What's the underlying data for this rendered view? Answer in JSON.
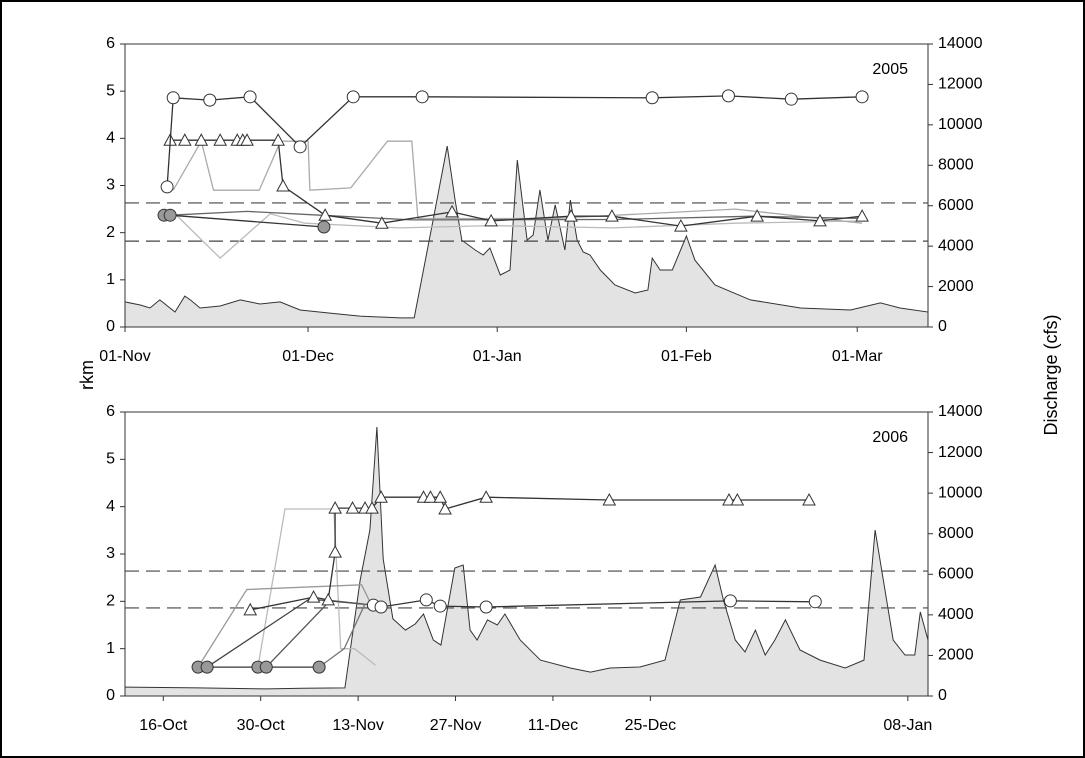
{
  "chart_data": [
    {
      "type": "line",
      "label": "2005",
      "y_label": "rkm",
      "y2_label": "Discharge (cfs)",
      "xlim": [
        0,
        131.6
      ],
      "xticks": [
        {
          "value": 0,
          "label": "01-Nov"
        },
        {
          "value": 30,
          "label": "01-Dec"
        },
        {
          "value": 61,
          "label": "01-Jan"
        },
        {
          "value": 92,
          "label": "01-Feb"
        },
        {
          "value": 120,
          "label": "01-Mar"
        }
      ],
      "ylim": [
        0,
        6
      ],
      "yticks": [
        0,
        1,
        2,
        3,
        4,
        5,
        6
      ],
      "y2lim": [
        0,
        14000
      ],
      "y2ticks": [
        0,
        2000,
        4000,
        6000,
        8000,
        10000,
        12000,
        14000
      ],
      "reference_lines": [
        2.63,
        1.82
      ],
      "series": [
        {
          "axis": "y2",
          "area": true,
          "color": "#333333",
          "fill": "#e3e3e3",
          "x": [
            0,
            2.5,
            4.1,
            5.7,
            8.2,
            9.8,
            10.7,
            12.3,
            15.6,
            18.9,
            22.1,
            25.4,
            28.7,
            33.6,
            38.5,
            45.1,
            47.4,
            50.5,
            52.8,
            54.1,
            55.2,
            57.4,
            58.7,
            59.8,
            61.5,
            63.1,
            64.3,
            65.9,
            66.9,
            68.0,
            69.3,
            70.5,
            72.1,
            73.0,
            74.1,
            75.1,
            76.2,
            77.9,
            80.3,
            83.6,
            85.7,
            86.4,
            87.7,
            89.7,
            92.0,
            93.4,
            96.7,
            102.5,
            110.7,
            118.9,
            123.8,
            127.0,
            131.6
          ],
          "values": [
            1240,
            1090,
            940,
            1340,
            740,
            1530,
            1340,
            940,
            1040,
            1340,
            1140,
            1240,
            840,
            690,
            540,
            450,
            450,
            5290,
            8950,
            6280,
            4300,
            3810,
            3560,
            3910,
            2570,
            2820,
            8260,
            4300,
            4550,
            6780,
            4300,
            6040,
            3810,
            6280,
            4300,
            3710,
            3560,
            2820,
            2080,
            1680,
            1830,
            3410,
            2820,
            2820,
            4500,
            3310,
            2080,
            1340,
            940,
            840,
            1190,
            940,
            740
          ]
        },
        {
          "color": "#bbbbbb",
          "x": [
            7.4,
            15.6,
            23.8,
            29.5,
            45,
            60,
            80,
            100,
            120.8
          ],
          "values": [
            2.5,
            1.46,
            2.4,
            2.2,
            2.1,
            2.15,
            2.1,
            2.2,
            2.25
          ]
        },
        {
          "color": "#aaaaaa",
          "x": [
            7.9,
            12.5,
            14.5,
            22,
            25.5,
            30,
            30.3,
            37,
            43,
            47,
            48,
            70,
            100,
            120.8
          ],
          "values": [
            2.9,
            3.94,
            2.9,
            2.9,
            3.94,
            3.94,
            2.9,
            2.95,
            3.94,
            3.94,
            2.3,
            2.3,
            2.5,
            2.2
          ]
        },
        {
          "color": "#666666",
          "x": [
            7.4,
            20,
            32,
            47,
            80,
            103,
            120.8
          ],
          "values": [
            2.37,
            2.45,
            2.37,
            2.27,
            2.28,
            2.35,
            2.3
          ]
        },
        {
          "color": "#333333",
          "marker": "triangle",
          "marker_fill": "#ffffff",
          "x": [
            7.4,
            9.8,
            12.5,
            15.6,
            18.4,
            19.3,
            20,
            25.1,
            25.9,
            32.8,
            42.1,
            53.6,
            60,
            73.1,
            79.8,
            91.1,
            103.6,
            113.9,
            120.8
          ],
          "values": [
            3.96,
            3.96,
            3.96,
            3.96,
            3.96,
            3.96,
            3.96,
            3.96,
            2.99,
            2.37,
            2.2,
            2.44,
            2.25,
            2.35,
            2.35,
            2.14,
            2.35,
            2.25,
            2.35
          ]
        },
        {
          "color": "#333333",
          "marker": "circle",
          "marker_fill": "#ffffff",
          "x": [
            6.9,
            7.9,
            13.9,
            20.5,
            28.7,
            37.4,
            48.7,
            86.4,
            98.9,
            109.2,
            120.8
          ],
          "values": [
            2.97,
            4.86,
            4.81,
            4.88,
            3.82,
            4.88,
            4.88,
            4.86,
            4.9,
            4.83,
            4.88
          ]
        },
        {
          "color": "#333333",
          "marker": "circle",
          "marker_fill": "#999999",
          "x": [
            6.4,
            7.4,
            32.6
          ],
          "values": [
            2.37,
            2.37,
            2.12
          ]
        }
      ]
    },
    {
      "type": "line",
      "label": "2006",
      "xlim": [
        -5.5,
        109.9
      ],
      "xticks": [
        {
          "value": 0,
          "label": "16-Oct"
        },
        {
          "value": 14,
          "label": "30-Oct"
        },
        {
          "value": 28,
          "label": "13-Nov"
        },
        {
          "value": 42,
          "label": "27-Nov"
        },
        {
          "value": 56,
          "label": "11-Dec"
        },
        {
          "value": 70,
          "label": "25-Dec"
        },
        {
          "value": 107,
          "label": "08-Jan"
        }
      ],
      "ylim": [
        0,
        6
      ],
      "yticks": [
        0,
        1,
        2,
        3,
        4,
        5,
        6
      ],
      "y2lim": [
        0,
        14000
      ],
      "y2ticks": [
        0,
        2000,
        4000,
        6000,
        8000,
        10000,
        12000,
        14000
      ],
      "reference_lines": [
        2.64,
        1.86
      ],
      "series": [
        {
          "axis": "y2",
          "area": true,
          "color": "#333333",
          "fill": "#e3e3e3",
          "x": [
            -5.5,
            5,
            15,
            20,
            26.1,
            28.3,
            29.7,
            30.7,
            31.6,
            33.0,
            34.8,
            36.2,
            37.4,
            38.8,
            39.9,
            41.9,
            43.1,
            44.1,
            45.1,
            46.6,
            48.0,
            49.1,
            51.3,
            54.2,
            58.5,
            61.4,
            64.2,
            68.5,
            72.1,
            74.3,
            77.2,
            79.3,
            80.5,
            82.2,
            83.6,
            85.1,
            86.5,
            87.9,
            89.4,
            91.5,
            94.4,
            98.0,
            100.7,
            102.3,
            104.9,
            106.6,
            108.0,
            108.8,
            109.9
          ],
          "values": [
            440,
            400,
            350,
            380,
            400,
            5720,
            8190,
            13260,
            6750,
            3800,
            3250,
            3550,
            4040,
            2760,
            2510,
            6310,
            6460,
            3250,
            2760,
            3750,
            3500,
            4040,
            2760,
            1770,
            1380,
            1180,
            1380,
            1430,
            1770,
            4730,
            4880,
            6460,
            4730,
            2760,
            2170,
            3250,
            2020,
            2760,
            3750,
            2270,
            1770,
            1380,
            1770,
            8180,
            2760,
            2020,
            2020,
            4140,
            2760
          ]
        },
        {
          "color": "#bbbbbb",
          "x": [
            13.6,
            17.5,
            24.5,
            25.5,
            27.5,
            30.5
          ],
          "values": [
            0.61,
            3.95,
            3.95,
            1.0,
            1.0,
            0.65
          ]
        },
        {
          "color": "#999999",
          "x": [
            5.0,
            12,
            28.5,
            30
          ],
          "values": [
            0.61,
            2.25,
            2.35,
            1.9
          ]
        },
        {
          "color": "#444444",
          "x": [
            6.3,
            21,
            30.2
          ],
          "values": [
            0.61,
            2.05,
            1.92
          ]
        },
        {
          "color": "#555555",
          "x": [
            14.8,
            24,
            30.2
          ],
          "values": [
            0.61,
            2.02,
            1.92
          ]
        },
        {
          "color": "#777777",
          "x": [
            22.4,
            26,
            29
          ],
          "values": [
            0.61,
            1.0,
            1.95
          ]
        },
        {
          "color": "#333333",
          "marker": "triangle",
          "marker_fill": "#ffffff",
          "x": [
            12.5,
            21.6,
            23.7,
            24.7,
            24.7,
            27.2,
            29,
            30,
            31.3,
            37.4,
            38.4,
            39.8,
            40.5,
            46.4,
            64.1,
            81.3,
            82.5,
            92.8
          ],
          "values": [
            1.82,
            2.09,
            2.03,
            3.04,
            3.97,
            3.97,
            3.97,
            3.97,
            4.2,
            4.2,
            4.2,
            4.2,
            3.95,
            4.2,
            4.14,
            4.14,
            4.14,
            4.14
          ]
        },
        {
          "color": "#333333",
          "marker": "circle",
          "marker_fill": "#ffffff",
          "x": [
            30.2,
            31.3,
            37.8,
            39.8,
            46.4,
            81.5,
            93.7
          ],
          "values": [
            1.92,
            1.88,
            2.03,
            1.9,
            1.88,
            2.01,
            1.99
          ]
        },
        {
          "color": "#333333",
          "marker": "circle",
          "marker_fill": "#999999",
          "x": [
            5.0,
            6.3,
            13.6,
            14.8,
            22.4
          ],
          "values": [
            0.61,
            0.61,
            0.61,
            0.61,
            0.61
          ]
        }
      ]
    }
  ]
}
